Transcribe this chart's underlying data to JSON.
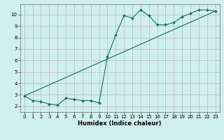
{
  "title": "",
  "xlabel": "Humidex (Indice chaleur)",
  "bg_color": "#cff0eb",
  "grid_color": "#b0b0b0",
  "line_color": "#1a7060",
  "xlim": [
    -0.5,
    23.5
  ],
  "ylim": [
    1.5,
    10.9
  ],
  "xticks": [
    0,
    1,
    2,
    3,
    4,
    5,
    6,
    7,
    8,
    9,
    10,
    11,
    12,
    13,
    14,
    15,
    16,
    17,
    18,
    19,
    20,
    21,
    22,
    23
  ],
  "yticks": [
    2,
    3,
    4,
    5,
    6,
    7,
    8,
    9,
    10
  ],
  "scatter_x": [
    0,
    1,
    2,
    3,
    4,
    5,
    6,
    7,
    8,
    9,
    10,
    11,
    12,
    13,
    14,
    15,
    16,
    17,
    18,
    19,
    20,
    21,
    22,
    23
  ],
  "scatter_y": [
    2.9,
    2.5,
    2.4,
    2.2,
    2.1,
    2.7,
    2.6,
    2.5,
    2.5,
    2.3,
    6.3,
    8.2,
    9.9,
    9.7,
    10.4,
    9.9,
    9.1,
    9.1,
    9.3,
    9.8,
    10.1,
    10.4,
    10.4,
    10.3
  ],
  "trend_x": [
    0,
    23
  ],
  "trend_y": [
    2.9,
    10.3
  ],
  "tick_fontsize": 5.0,
  "xlabel_fontsize": 6.0,
  "marker_size": 2.0,
  "line_width": 0.8
}
